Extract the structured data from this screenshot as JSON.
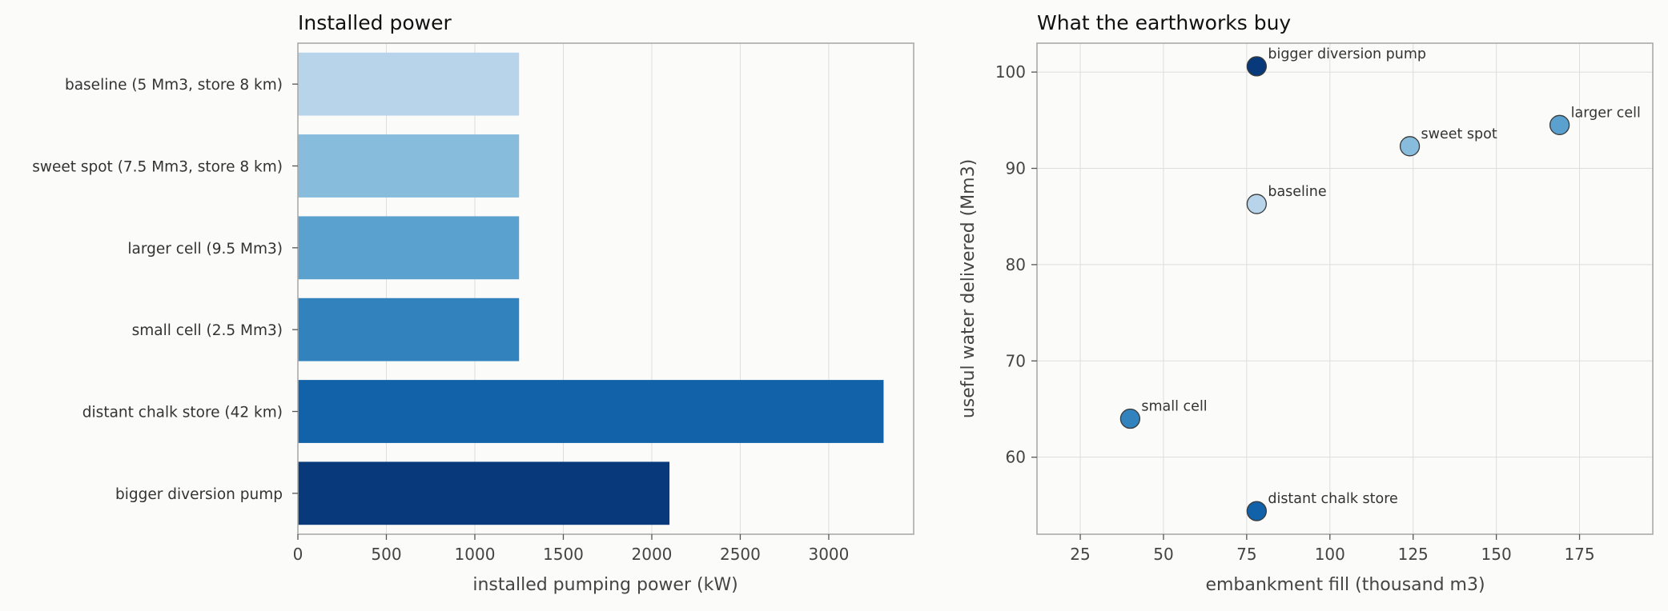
{
  "chart_data": [
    {
      "type": "bar",
      "orientation": "horizontal",
      "title": "Installed power",
      "xlabel": "installed pumping power (kW)",
      "ylabel": "",
      "categories": [
        "baseline (5 Mm3, store 8 km)",
        "sweet spot (7.5 Mm3, store 8 km)",
        "larger cell (9.5 Mm3)",
        "small cell (2.5 Mm3)",
        "distant chalk store (42 km)",
        "bigger diversion pump"
      ],
      "values": [
        1250,
        1250,
        1250,
        1250,
        3310,
        2100
      ],
      "colors": [
        "#b8d4eb",
        "#87bcdc",
        "#5aa1cf",
        "#3182bd",
        "#1262a9",
        "#08397a"
      ],
      "xlim": [
        0,
        3480
      ],
      "xticks": [
        0,
        500,
        1000,
        1500,
        2000,
        2500,
        3000
      ],
      "grid": true
    },
    {
      "type": "scatter",
      "title": "What the earthworks buy",
      "xlabel": "embankment fill (thousand m3)",
      "ylabel": "useful water delivered (Mm3)",
      "xlim": [
        12,
        197
      ],
      "ylim": [
        52,
        103
      ],
      "xticks": [
        25,
        50,
        75,
        100,
        125,
        150,
        175
      ],
      "yticks": [
        60,
        70,
        80,
        90,
        100
      ],
      "grid": true,
      "points": [
        {
          "label": "bigger diversion pump",
          "x": 78,
          "y": 100.6,
          "color": "#08397a"
        },
        {
          "label": "larger cell",
          "x": 169,
          "y": 94.5,
          "color": "#5aa1cf"
        },
        {
          "label": "sweet spot",
          "x": 124,
          "y": 92.3,
          "color": "#87bcdc"
        },
        {
          "label": "baseline",
          "x": 78,
          "y": 86.3,
          "color": "#b8d4eb"
        },
        {
          "label": "small cell",
          "x": 40,
          "y": 64.0,
          "color": "#3182bd"
        },
        {
          "label": "distant chalk store",
          "x": 78,
          "y": 54.4,
          "color": "#1262a9"
        }
      ]
    }
  ]
}
